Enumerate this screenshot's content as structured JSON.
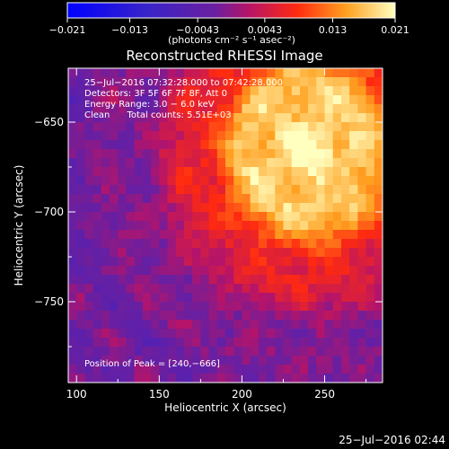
{
  "colorbar": {
    "ticks": [
      -0.021,
      -0.013,
      -0.0043,
      0.0043,
      0.013,
      0.021
    ],
    "tick_labels": [
      "−0.021",
      "−0.013",
      "−0.0043",
      "0.0043",
      "0.013",
      "0.021"
    ],
    "unit_label": "(photons cm⁻² s⁻¹ asec⁻²)",
    "range": [
      -0.021,
      0.021
    ]
  },
  "chart_data": {
    "type": "heatmap",
    "title": "Reconstructed RHESSI Image",
    "xlabel": "Heliocentric X (arcsec)",
    "ylabel": "Heliocentric Y (arcsec)",
    "xlim": [
      95,
      285
    ],
    "ylim": [
      -795,
      -620
    ],
    "xticks": [
      100,
      150,
      200,
      250
    ],
    "yticks": [
      -650,
      -700,
      -750
    ],
    "colormap": "blue-purple-red-yellow-white",
    "peak": [
      240,
      -666
    ],
    "info_lines": [
      "25−Jul−2016 07:32:28.000 to 07:42:28.000",
      "Detectors: 3F 5F 6F 7F 8F, Att 0",
      "Energy Range: 3.0 − 6.0 keV",
      "Clean      Total counts: 5.51E+03"
    ],
    "peak_label": "Position of Peak = [240,−666]"
  },
  "footer": {
    "timestamp": "25−Jul−2016 02:44"
  }
}
